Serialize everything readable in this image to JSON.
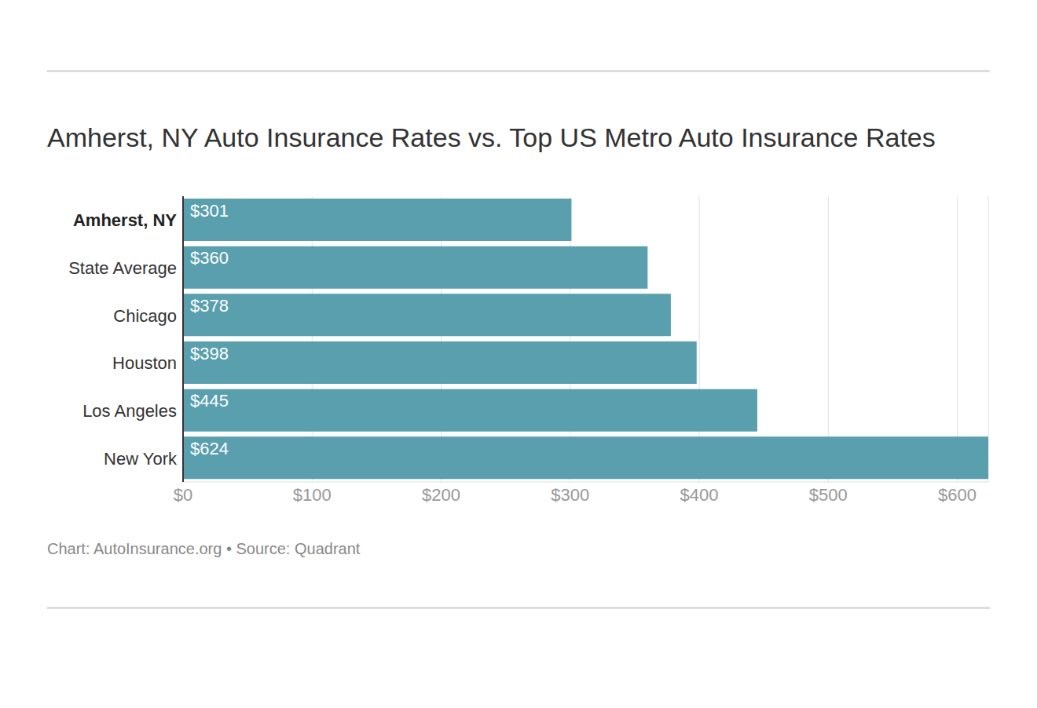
{
  "chart_data": {
    "type": "bar",
    "orientation": "horizontal",
    "title": "Amherst, NY Auto Insurance Rates vs. Top US Metro Auto Insurance Rates",
    "source": "Chart: AutoInsurance.org • Source: Quadrant",
    "categories": [
      "Amherst, NY",
      "State Average",
      "Chicago",
      "Houston",
      "Los Angeles",
      "New York"
    ],
    "values": [
      301,
      360,
      378,
      398,
      445,
      624
    ],
    "value_labels": [
      "$301",
      "$360",
      "$378",
      "$398",
      "$445",
      "$624"
    ],
    "data_labels": true,
    "color": "#599fae",
    "xlim": [
      0,
      624
    ],
    "xticks": [
      {
        "value": 0,
        "label": "$0"
      },
      {
        "value": 100,
        "label": "$100"
      },
      {
        "value": 200,
        "label": "$200"
      },
      {
        "value": 300,
        "label": "$300"
      },
      {
        "value": 400,
        "label": "$400"
      },
      {
        "value": 500,
        "label": "$500"
      },
      {
        "value": 600,
        "label": "$600"
      }
    ],
    "grid": true
  }
}
